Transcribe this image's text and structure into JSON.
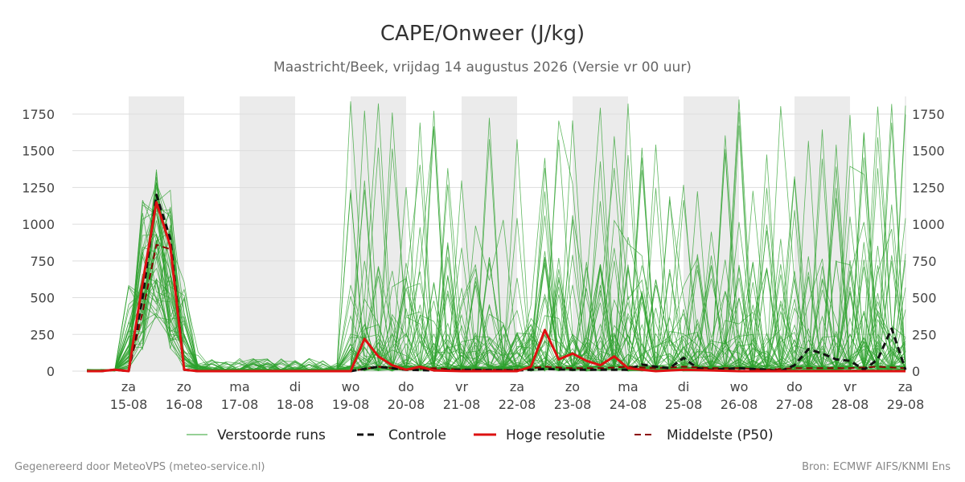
{
  "title": "CAPE/Onweer (J/kg)",
  "subtitle": "Maastricht/Beek, vrijdag 14 augustus 2026 (Versie vr 00 uur)",
  "footer_left": "Gegenereerd door MeteoVPS (meteo-service.nl)",
  "footer_right": "Bron: ECMWF AIFS/KNMI Ens",
  "colors": {
    "ensemble": "#2ca02c",
    "control": "#111111",
    "hires": "#dd1111",
    "median": "#8b0000",
    "weekend_band": "#ebebeb",
    "grid": "#dddddd"
  },
  "chart_data": {
    "type": "line",
    "title": "CAPE/Onweer (J/kg)",
    "ylim": [
      0,
      1870
    ],
    "yticks": [
      0,
      250,
      500,
      750,
      1000,
      1250,
      1500,
      1750
    ],
    "x_unit": "days from 2026-08-14 00 UTC",
    "xlim": [
      -0.7,
      14.0
    ],
    "xticks": [
      {
        "day": "za",
        "date": "15-08"
      },
      {
        "day": "zo",
        "date": "16-08"
      },
      {
        "day": "ma",
        "date": "17-08"
      },
      {
        "day": "di",
        "date": "18-08"
      },
      {
        "day": "wo",
        "date": "19-08"
      },
      {
        "day": "do",
        "date": "20-08"
      },
      {
        "day": "vr",
        "date": "21-08"
      },
      {
        "day": "za",
        "date": "22-08"
      },
      {
        "day": "zo",
        "date": "23-08"
      },
      {
        "day": "ma",
        "date": "24-08"
      },
      {
        "day": "di",
        "date": "25-08"
      },
      {
        "day": "wo",
        "date": "26-08"
      },
      {
        "day": "do",
        "date": "27-08"
      },
      {
        "day": "vr",
        "date": "28-08"
      },
      {
        "day": "za",
        "date": "29-08"
      }
    ],
    "shaded_periods": [
      [
        0,
        1
      ],
      [
        2,
        3
      ],
      [
        4,
        5
      ],
      [
        6,
        7
      ],
      [
        8,
        9
      ],
      [
        10,
        11
      ],
      [
        12,
        13
      ]
    ],
    "grid": true,
    "legend_position": "bottom",
    "legend": [
      "Verstoorde runs",
      "Controle",
      "Hoge resolutie",
      "Middelste (P50)"
    ],
    "series": [
      {
        "name": "Controle",
        "style": "dashed",
        "x": [
          -0.75,
          -0.5,
          -0.25,
          0,
          0.25,
          0.5,
          0.75,
          1.0,
          1.25,
          1.5,
          2,
          3,
          4,
          4.5,
          5,
          5.5,
          6,
          7,
          7.5,
          8,
          8.5,
          9,
          9.25,
          9.5,
          9.75,
          10,
          10.25,
          10.5,
          11,
          11.5,
          11.75,
          12,
          12.25,
          12.5,
          12.75,
          13,
          13.25,
          13.5,
          13.75,
          14.0
        ],
        "y": [
          0,
          0,
          10,
          0,
          500,
          1200,
          900,
          10,
          0,
          0,
          0,
          0,
          0,
          30,
          10,
          5,
          10,
          5,
          15,
          10,
          10,
          10,
          45,
          30,
          20,
          90,
          20,
          10,
          20,
          10,
          0,
          40,
          150,
          120,
          80,
          70,
          10,
          80,
          290,
          10
        ]
      },
      {
        "name": "Hoge resolutie",
        "style": "solid",
        "x": [
          -0.75,
          -0.5,
          -0.25,
          0,
          0.25,
          0.5,
          0.75,
          1.0,
          1.25,
          1.5,
          2,
          3,
          4,
          4.25,
          4.5,
          4.75,
          5,
          5.25,
          5.5,
          6,
          7,
          7.25,
          7.5,
          7.75,
          8,
          8.25,
          8.5,
          8.75,
          9,
          9.25,
          9.5,
          10,
          11,
          12,
          13,
          14.0
        ],
        "y": [
          0,
          0,
          10,
          0,
          600,
          1150,
          850,
          10,
          0,
          0,
          0,
          0,
          0,
          220,
          100,
          40,
          10,
          30,
          5,
          0,
          0,
          30,
          280,
          80,
          120,
          70,
          40,
          100,
          20,
          10,
          0,
          10,
          0,
          0,
          0,
          0
        ]
      },
      {
        "name": "Middelste (P50)",
        "style": "dashed",
        "x": [
          -0.75,
          -0.5,
          -0.25,
          0,
          0.25,
          0.5,
          0.75,
          1.0,
          1.25,
          1.5,
          2,
          3,
          4,
          4.5,
          5,
          5.5,
          6,
          7,
          7.5,
          8,
          8.5,
          9,
          9.5,
          10,
          10.5,
          11,
          11.5,
          12,
          12.5,
          13,
          13.5,
          14.0
        ],
        "y": [
          0,
          0,
          10,
          0,
          400,
          860,
          830,
          10,
          0,
          0,
          0,
          0,
          0,
          30,
          10,
          20,
          10,
          10,
          30,
          20,
          20,
          30,
          20,
          30,
          20,
          20,
          10,
          20,
          20,
          20,
          30,
          20
        ]
      }
    ]
  }
}
